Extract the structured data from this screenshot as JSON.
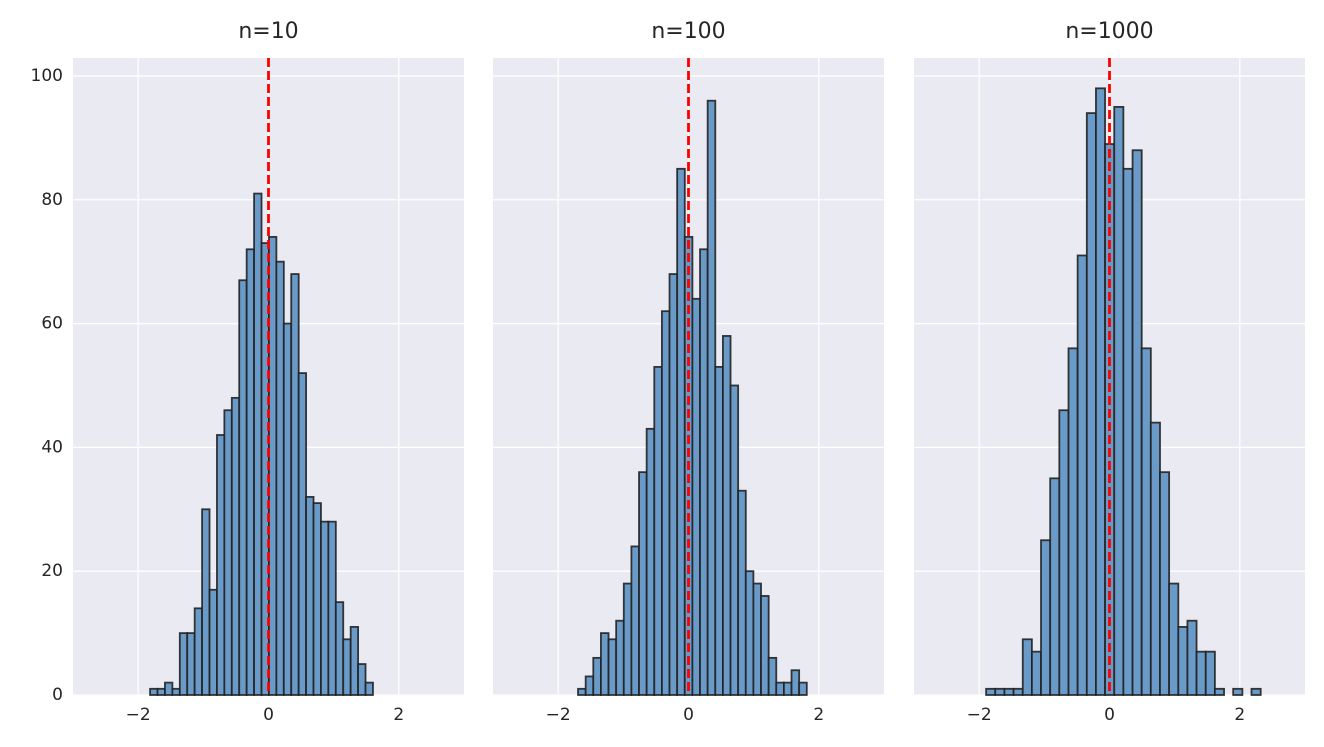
{
  "chart_data": [
    {
      "type": "histogram",
      "title": "n=10",
      "bins": [
        -1.817,
        -1.703,
        -1.589,
        -1.475,
        -1.361,
        -1.247,
        -1.133,
        -1.019,
        -0.905,
        -0.791,
        -0.677,
        -0.563,
        -0.449,
        -0.335,
        -0.221,
        -0.107,
        0.007,
        0.121,
        0.235,
        0.349,
        0.463,
        0.577,
        0.691,
        0.805,
        0.919,
        1.033,
        1.147,
        1.261,
        1.375,
        1.489,
        1.603
      ],
      "values": [
        1,
        1,
        2,
        1,
        10,
        10,
        14,
        30,
        17,
        42,
        46,
        48,
        67,
        72,
        81,
        73,
        74,
        70,
        60,
        68,
        52,
        32,
        31,
        28,
        28,
        15,
        9,
        11,
        5,
        2
      ],
      "color": "#6a9bc8",
      "edgecolor": "#222222",
      "vline": 0,
      "vline_color": "#ff0000",
      "xlim": [
        -3,
        3
      ],
      "xticks": [
        {
          "value": -2,
          "label": "−2"
        },
        0,
        2
      ],
      "ylim": [
        0,
        102.9
      ],
      "yticks": [
        0,
        20,
        40,
        60,
        80,
        100
      ],
      "ytick_labels": true,
      "grid": true
    },
    {
      "type": "histogram",
      "title": "n=100",
      "bins": [
        -1.695,
        -1.578,
        -1.461,
        -1.344,
        -1.227,
        -1.11,
        -0.993,
        -0.876,
        -0.759,
        -0.642,
        -0.525,
        -0.408,
        -0.291,
        -0.174,
        -0.057,
        0.06,
        0.177,
        0.294,
        0.411,
        0.528,
        0.645,
        0.762,
        0.879,
        0.996,
        1.113,
        1.23,
        1.347,
        1.464,
        1.581,
        1.698,
        1.815
      ],
      "values": [
        1,
        3,
        6,
        10,
        9,
        12,
        18,
        24,
        36,
        43,
        53,
        62,
        68,
        85,
        74,
        64,
        72,
        96,
        53,
        58,
        50,
        33,
        20,
        18,
        16,
        6,
        2,
        2,
        4,
        2
      ],
      "color": "#6a9bc8",
      "edgecolor": "#222222",
      "vline": 0,
      "vline_color": "#ff0000",
      "xlim": [
        -3,
        3
      ],
      "xticks": [
        {
          "value": -2,
          "label": "−2"
        },
        0,
        2
      ],
      "ylim": [
        0,
        102.9
      ],
      "yticks": [
        0,
        20,
        40,
        60,
        80,
        100
      ],
      "ytick_labels": false,
      "grid": true
    },
    {
      "type": "histogram",
      "title": "n=1000",
      "bins": [
        -1.893,
        -1.753,
        -1.612,
        -1.472,
        -1.331,
        -1.191,
        -1.051,
        -0.91,
        -0.77,
        -0.629,
        -0.489,
        -0.348,
        -0.208,
        -0.068,
        0.073,
        0.213,
        0.354,
        0.494,
        0.634,
        0.775,
        0.915,
        1.056,
        1.196,
        1.336,
        1.477,
        1.617,
        1.758,
        1.898,
        2.039,
        2.179,
        2.32
      ],
      "values": [
        1,
        1,
        1,
        1,
        9,
        7,
        25,
        35,
        46,
        56,
        71,
        94,
        98,
        89,
        95,
        85,
        88,
        56,
        44,
        36,
        18,
        11,
        12,
        7,
        7,
        1,
        0,
        1,
        0,
        1
      ],
      "color": "#6a9bc8",
      "edgecolor": "#222222",
      "vline": 0,
      "vline_color": "#ff0000",
      "xlim": [
        -3,
        3
      ],
      "xticks": [
        {
          "value": -2,
          "label": "−2"
        },
        0,
        2
      ],
      "ylim": [
        0,
        102.9
      ],
      "yticks": [
        0,
        20,
        40,
        60,
        80,
        100
      ],
      "ytick_labels": false,
      "grid": true
    }
  ]
}
